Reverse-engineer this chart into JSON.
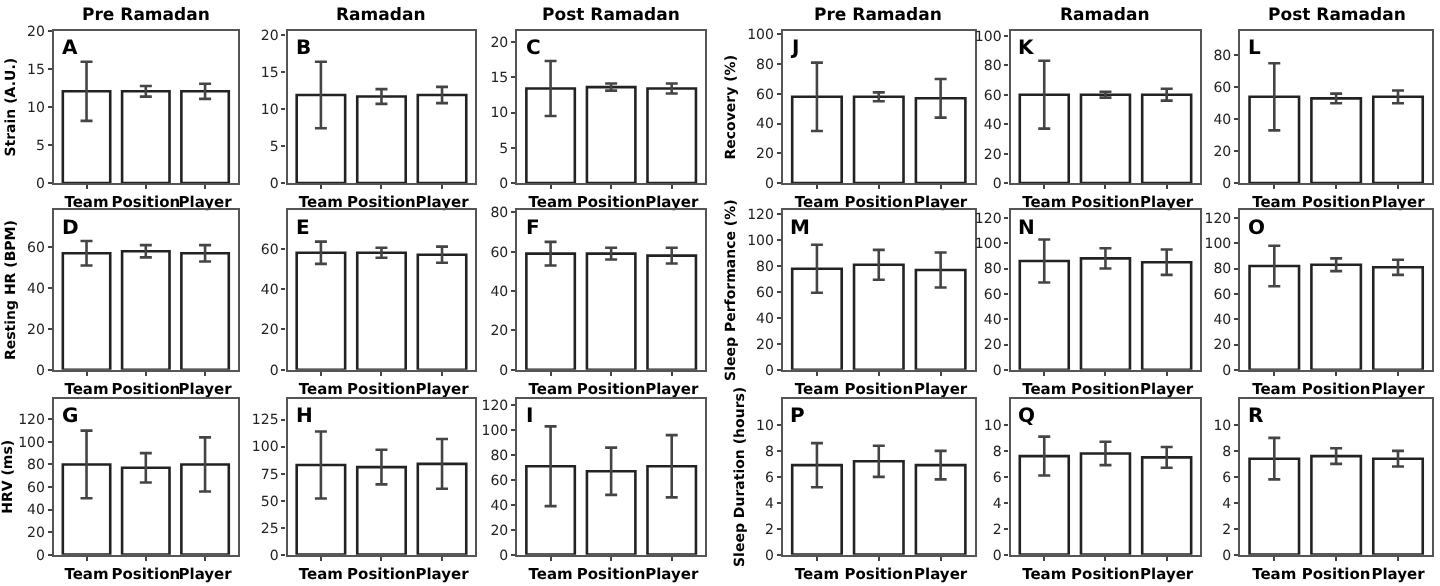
{
  "chart_data": [
    {
      "type": "bar",
      "title": "Pre Ramadan",
      "ylabel": "Strain (A.U.)",
      "annotations": [
        "A"
      ],
      "categories": [
        "Team",
        "Position",
        "Player"
      ],
      "values": [
        12.1,
        12.1,
        12.1
      ],
      "errors": [
        3.9,
        0.7,
        1.0
      ],
      "color": "#ffffff",
      "ylim": [
        0,
        20
      ],
      "yticks": [
        0,
        5,
        10,
        15,
        20
      ]
    },
    {
      "type": "bar",
      "title": "Ramadan",
      "annotations": [
        "B"
      ],
      "categories": [
        "Team",
        "Position",
        "Player"
      ],
      "values": [
        11.9,
        11.7,
        11.9
      ],
      "errors": [
        4.5,
        1.0,
        1.1
      ],
      "color": "#ffffff",
      "ylim": [
        0,
        20.5
      ],
      "yticks": [
        0,
        5,
        10,
        15,
        20
      ]
    },
    {
      "type": "bar",
      "title": "Post Ramadan",
      "annotations": [
        "C"
      ],
      "categories": [
        "Team",
        "Position",
        "Player"
      ],
      "values": [
        13.4,
        13.6,
        13.4
      ],
      "errors": [
        3.9,
        0.5,
        0.7
      ],
      "color": "#ffffff",
      "ylim": [
        0,
        21.5
      ],
      "yticks": [
        0,
        5,
        10,
        15,
        20
      ]
    },
    {
      "type": "bar",
      "title": "Pre Ramadan",
      "ylabel": "Recovery (%)",
      "annotations": [
        "J"
      ],
      "categories": [
        "Team",
        "Position",
        "Player"
      ],
      "values": [
        58,
        58,
        57
      ],
      "errors": [
        23,
        3,
        13
      ],
      "color": "#ffffff",
      "ylim": [
        0,
        102
      ],
      "yticks": [
        0,
        20,
        40,
        60,
        80,
        100
      ]
    },
    {
      "type": "bar",
      "title": "Ramadan",
      "annotations": [
        "K"
      ],
      "categories": [
        "Team",
        "Position",
        "Player"
      ],
      "values": [
        60,
        60,
        60
      ],
      "errors": [
        23,
        2,
        4
      ],
      "color": "#ffffff",
      "ylim": [
        0,
        103
      ],
      "yticks": [
        0,
        20,
        40,
        60,
        80,
        100
      ]
    },
    {
      "type": "bar",
      "title": "Post Ramadan",
      "annotations": [
        "L"
      ],
      "categories": [
        "Team",
        "Position",
        "Player"
      ],
      "values": [
        54,
        53,
        54
      ],
      "errors": [
        21,
        3,
        4
      ],
      "color": "#ffffff",
      "ylim": [
        0,
        95
      ],
      "yticks": [
        0,
        20,
        40,
        60,
        80
      ]
    },
    {
      "type": "bar",
      "ylabel": "Resting HR (BPM)",
      "annotations": [
        "D"
      ],
      "categories": [
        "Team",
        "Position",
        "Player"
      ],
      "values": [
        57,
        58,
        57
      ],
      "errors": [
        6,
        3,
        4
      ],
      "color": "#ffffff",
      "ylim": [
        0,
        78
      ],
      "yticks": [
        0,
        20,
        40,
        60
      ]
    },
    {
      "type": "bar",
      "annotations": [
        "E"
      ],
      "categories": [
        "Team",
        "Position",
        "Player"
      ],
      "values": [
        58,
        58,
        57
      ],
      "errors": [
        5.5,
        2.5,
        4
      ],
      "color": "#ffffff",
      "ylim": [
        0,
        79
      ],
      "yticks": [
        0,
        20,
        40,
        60
      ]
    },
    {
      "type": "bar",
      "annotations": [
        "F"
      ],
      "categories": [
        "Team",
        "Position",
        "Player"
      ],
      "values": [
        59,
        59,
        58
      ],
      "errors": [
        6,
        3,
        4
      ],
      "color": "#ffffff",
      "ylim": [
        0,
        81
      ],
      "yticks": [
        0,
        20,
        40,
        60,
        80
      ]
    },
    {
      "type": "bar",
      "ylabel": "Sleep Performance (%)",
      "annotations": [
        "M"
      ],
      "categories": [
        "Team",
        "Position",
        "Player"
      ],
      "values": [
        78,
        81,
        77
      ],
      "errors": [
        18.5,
        11.5,
        13.5
      ],
      "color": "#ffffff",
      "ylim": [
        0,
        123
      ],
      "yticks": [
        0,
        20,
        40,
        60,
        80,
        100,
        120
      ]
    },
    {
      "type": "bar",
      "annotations": [
        "N"
      ],
      "categories": [
        "Team",
        "Position",
        "Player"
      ],
      "values": [
        86,
        88,
        85
      ],
      "errors": [
        17,
        8,
        10
      ],
      "color": "#ffffff",
      "ylim": [
        0,
        126
      ],
      "yticks": [
        0,
        20,
        40,
        60,
        80,
        100,
        120
      ]
    },
    {
      "type": "bar",
      "annotations": [
        "O"
      ],
      "categories": [
        "Team",
        "Position",
        "Player"
      ],
      "values": [
        82,
        83,
        81
      ],
      "errors": [
        16,
        5,
        6
      ],
      "color": "#ffffff",
      "ylim": [
        0,
        126
      ],
      "yticks": [
        0,
        20,
        40,
        60,
        80,
        100,
        120
      ]
    },
    {
      "type": "bar",
      "ylabel": "HRV (ms)",
      "annotations": [
        "G"
      ],
      "categories": [
        "Team",
        "Position",
        "Player"
      ],
      "values": [
        80,
        77,
        80
      ],
      "errors": [
        30,
        13,
        24
      ],
      "color": "#ffffff",
      "ylim": [
        0,
        138
      ],
      "yticks": [
        0,
        20,
        40,
        60,
        80,
        100,
        120
      ]
    },
    {
      "type": "bar",
      "annotations": [
        "H"
      ],
      "categories": [
        "Team",
        "Position",
        "Player"
      ],
      "values": [
        83,
        81,
        84
      ],
      "errors": [
        31,
        16,
        23
      ],
      "color": "#ffffff",
      "ylim": [
        0,
        144
      ],
      "yticks": [
        0,
        25,
        50,
        75,
        100,
        125
      ]
    },
    {
      "type": "bar",
      "annotations": [
        "I"
      ],
      "categories": [
        "Team",
        "Position",
        "Player"
      ],
      "values": [
        71,
        67,
        71
      ],
      "errors": [
        32,
        19,
        25
      ],
      "color": "#ffffff",
      "ylim": [
        0,
        125
      ],
      "yticks": [
        0,
        20,
        40,
        60,
        80,
        100,
        120
      ]
    },
    {
      "type": "bar",
      "ylabel": "Sleep Duration (hours)",
      "annotations": [
        "P"
      ],
      "categories": [
        "Team",
        "Position",
        "Player"
      ],
      "values": [
        6.9,
        7.2,
        6.9
      ],
      "errors": [
        1.7,
        1.2,
        1.1
      ],
      "color": "#ffffff",
      "ylim": [
        0,
        12
      ],
      "yticks": [
        0,
        2,
        4,
        6,
        8,
        10
      ]
    },
    {
      "type": "bar",
      "annotations": [
        "Q"
      ],
      "categories": [
        "Team",
        "Position",
        "Player"
      ],
      "values": [
        7.6,
        7.8,
        7.5
      ],
      "errors": [
        1.5,
        0.9,
        0.8
      ],
      "color": "#ffffff",
      "ylim": [
        0,
        12
      ],
      "yticks": [
        0,
        2,
        4,
        6,
        8,
        10
      ]
    },
    {
      "type": "bar",
      "annotations": [
        "R"
      ],
      "categories": [
        "Team",
        "Position",
        "Player"
      ],
      "values": [
        7.4,
        7.6,
        7.4
      ],
      "errors": [
        1.6,
        0.6,
        0.6
      ],
      "color": "#ffffff",
      "ylim": [
        0,
        12
      ],
      "yticks": [
        0,
        2,
        4,
        6,
        8,
        10
      ]
    }
  ]
}
